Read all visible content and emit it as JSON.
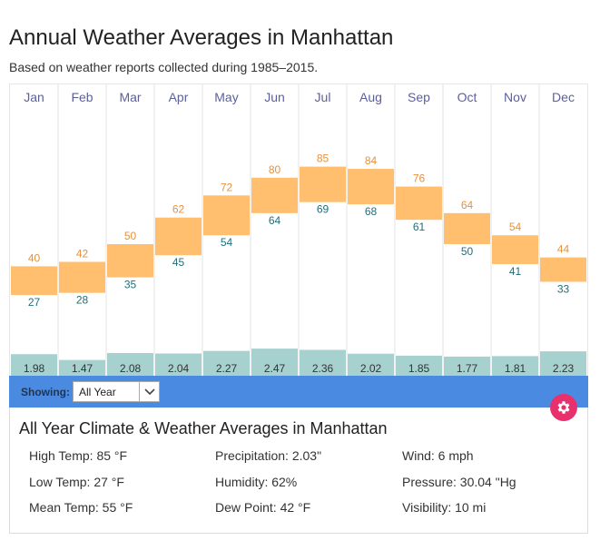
{
  "header": {
    "title": "Annual Weather Averages in Manhattan",
    "subtitle": "Based on weather reports collected during 1985–2015."
  },
  "chart_data": {
    "type": "bar",
    "title": "Annual Weather Averages in Manhattan",
    "categories": [
      "Jan",
      "Feb",
      "Mar",
      "Apr",
      "May",
      "Jun",
      "Jul",
      "Aug",
      "Sep",
      "Oct",
      "Nov",
      "Dec"
    ],
    "series": [
      {
        "name": "High Temp (°F)",
        "values": [
          40,
          42,
          50,
          62,
          72,
          80,
          85,
          84,
          76,
          64,
          54,
          44
        ]
      },
      {
        "name": "Low Temp (°F)",
        "values": [
          27,
          28,
          35,
          45,
          54,
          64,
          69,
          68,
          61,
          50,
          41,
          33
        ]
      },
      {
        "name": "Precipitation (in)",
        "values": [
          1.98,
          1.47,
          2.08,
          2.04,
          2.27,
          2.47,
          2.36,
          2.02,
          1.85,
          1.77,
          1.81,
          2.23
        ]
      }
    ],
    "ylim": [
      0,
      100
    ],
    "colors": {
      "temp_bar": "#ffbf6e",
      "high_label": "#e8913a",
      "low_label": "#1f6f7a",
      "precip_bar": "#a6d1cf",
      "month_label": "#5b5fa0",
      "grid": "#e3e3e3"
    }
  },
  "controls": {
    "showing_label": "Showing:",
    "showing_value": "All Year",
    "settings_icon": "gear-icon"
  },
  "summary": {
    "title": "All Year Climate & Weather Averages in Manhattan",
    "stats": [
      "High Temp: 85 °F",
      "Precipitation: 2.03\"",
      "Wind: 6 mph",
      "Low Temp: 27 °F",
      "Humidity: 62%",
      "Pressure: 30.04 \"Hg",
      "Mean Temp: 55 °F",
      "Dew Point: 42 °F",
      "Visibility: 10 mi"
    ]
  }
}
